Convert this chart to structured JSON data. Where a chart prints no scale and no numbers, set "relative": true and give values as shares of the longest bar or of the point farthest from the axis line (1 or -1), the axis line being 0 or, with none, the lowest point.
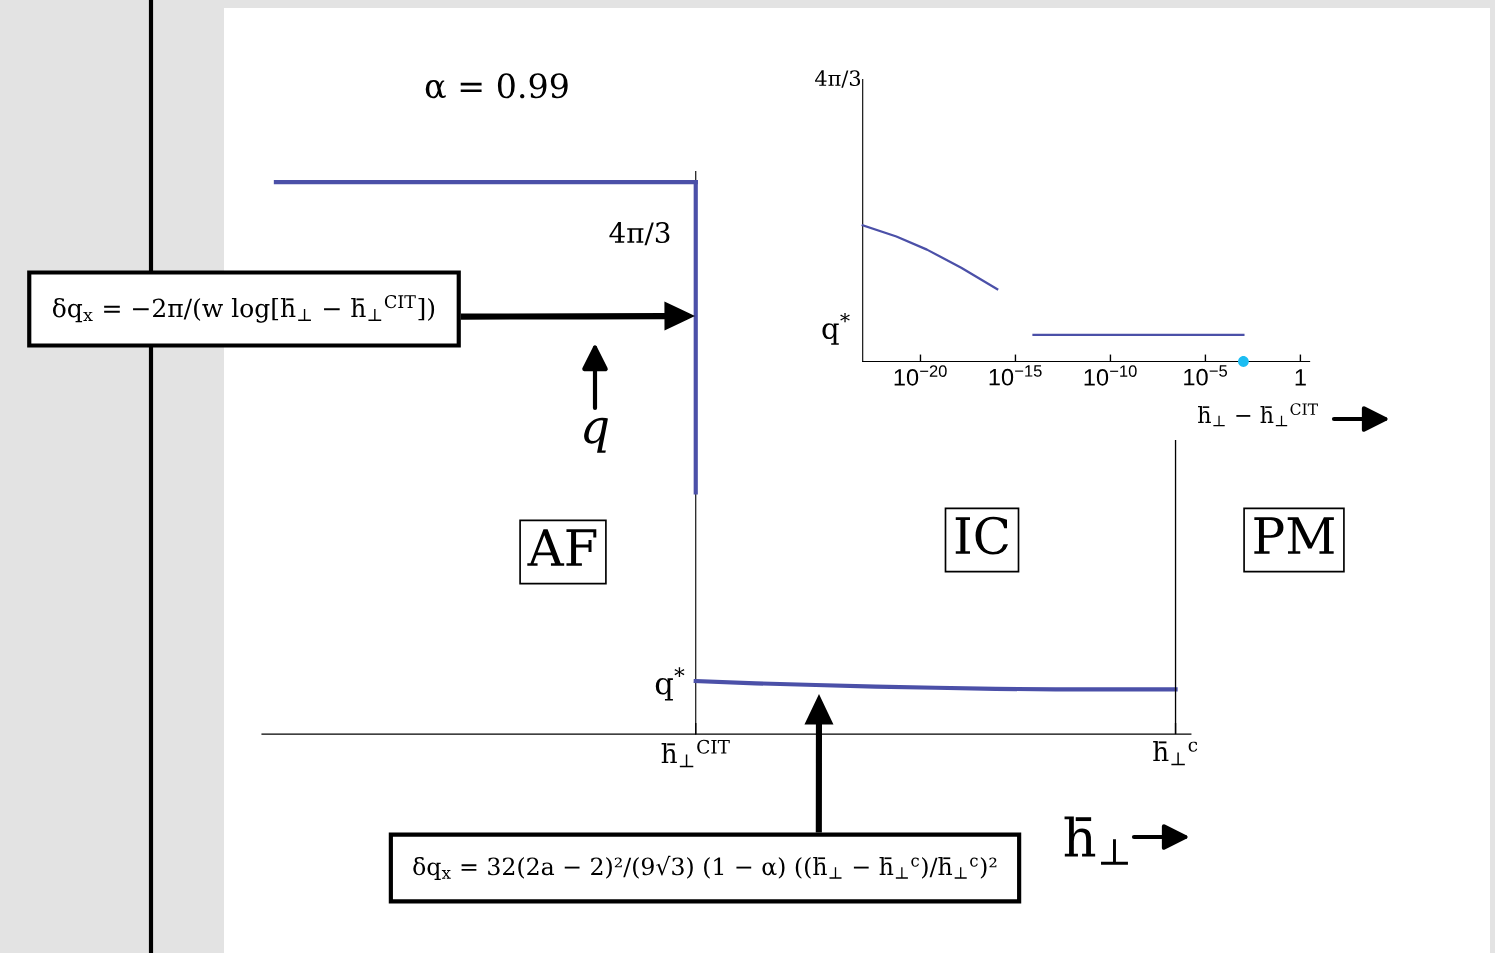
{
  "chart_data": [
    {
      "type": "line",
      "title": "α = 0.99",
      "xlabel": "h̄$_{⊥}$",
      "ylabel": "q",
      "relative": true,
      "categories": [
        null,
        null,
        null,
        null,
        null,
        null,
        null,
        "h̄$_{⊥}$$^{CIT}$",
        null,
        null,
        null,
        null,
        null,
        null,
        null,
        "h̄$_{⊥}$$^{c}$"
      ],
      "series": [
        {
          "color": "#4b50a8",
          "values": [
            1,
            1,
            1,
            1,
            1,
            1,
            1,
            1,
            null,
            null,
            null,
            null,
            null,
            null,
            null,
            null
          ]
        },
        {
          "color": "#4b50a8",
          "x": [
            "h̄$_{⊥}$$^{CIT}$",
            "h̄$_{⊥}$$^{CIT}$"
          ],
          "values": [
            1,
            0.438
          ]
        },
        {
          "color": "#4b50a8",
          "values": [
            null,
            null,
            null,
            null,
            null,
            null,
            null,
            0.096,
            0.092,
            0.089,
            0.086,
            0.084,
            0.082,
            0.081,
            0.081,
            0.081
          ]
        },
        {
          "type": "bar",
          "color": "#000000",
          "values": [
            null,
            null,
            null,
            null,
            null,
            null,
            null,
            null,
            null,
            null,
            null,
            null,
            null,
            null,
            null,
            0.533
          ]
        }
      ],
      "annotations": [
        "δq$_{x}$ = −2π/(w log[h̄$_{⊥}$ − h̄$_{⊥}$$^{CIT}$])",
        "4π/3",
        "q$^{*}$",
        "AF",
        "IC",
        "PM",
        "δq$_{x}$ = 32(2a − 2)²/(9√3) (1 − α) ((h̄$_{⊥}$ − h̄$_{⊥}$$^{c}$)/h̄$_{⊥}$$^{c}$)²"
      ]
    },
    {
      "type": "line",
      "xlabel": "h̄$_{⊥}$ − h̄$_{⊥}$$^{CIT}$",
      "log": "x",
      "relative": true,
      "xlim": [
        9.1e-24,
        3.05
      ],
      "xticks": [
        {
          "value": 1e-20,
          "label": "10$^{−20}$"
        },
        {
          "value": 1e-15,
          "label": "10$^{−15}$"
        },
        {
          "value": 1e-10,
          "label": "10$^{−10}$"
        },
        {
          "value": 1e-05,
          "label": "10$^{−5}$"
        },
        1
      ],
      "series": [
        {
          "color": "#4b50a8",
          "x": [
            9.1e-24,
            5.4e-22,
            2.2e-20,
            1.4e-18,
            1.1e-16
          ],
          "values": [
            1,
            0.918,
            0.822,
            0.689,
            0.531
          ]
        },
        {
          "color": "#4b50a8",
          "x": [
            8.9e-15,
            0.001
          ],
          "values": [
            0.195,
            0.195
          ]
        },
        {
          "type": "scatter",
          "color": "#1cbdf2",
          "marker": "circle",
          "x": [
            0.001
          ],
          "values": [
            0
          ]
        }
      ],
      "annotations": [
        "4π/3",
        "q$^{*}$"
      ]
    }
  ]
}
